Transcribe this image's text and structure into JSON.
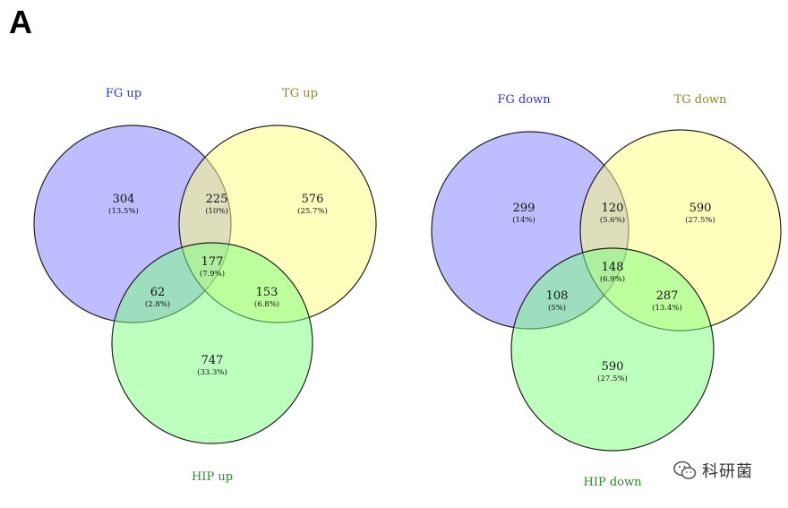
{
  "panel_label": "A",
  "chart_data": [
    {
      "type": "venn",
      "sets": [
        {
          "name": "FG up",
          "color": "#7b7bff"
        },
        {
          "name": "TG up",
          "color": "#ffff7b"
        },
        {
          "name": "HIP up",
          "color": "#7bff7b"
        }
      ],
      "regions": [
        {
          "sets": [
            "FG up"
          ],
          "count": "304",
          "percent": "(13.5%)"
        },
        {
          "sets": [
            "TG up"
          ],
          "count": "576",
          "percent": "(25.7%)"
        },
        {
          "sets": [
            "HIP up"
          ],
          "count": "747",
          "percent": "(33.3%)"
        },
        {
          "sets": [
            "FG up",
            "TG up"
          ],
          "count": "225",
          "percent": "(10%)"
        },
        {
          "sets": [
            "FG up",
            "HIP up"
          ],
          "count": "62",
          "percent": "(2.8%)"
        },
        {
          "sets": [
            "TG up",
            "HIP up"
          ],
          "count": "153",
          "percent": "(6.8%)"
        },
        {
          "sets": [
            "FG up",
            "TG up",
            "HIP up"
          ],
          "count": "177",
          "percent": "(7.9%)"
        }
      ]
    },
    {
      "type": "venn",
      "sets": [
        {
          "name": "FG down",
          "color": "#7b7bff"
        },
        {
          "name": "TG down",
          "color": "#ffff7b"
        },
        {
          "name": "HIP down",
          "color": "#7bff7b"
        }
      ],
      "regions": [
        {
          "sets": [
            "FG down"
          ],
          "count": "299",
          "percent": "(14%)"
        },
        {
          "sets": [
            "TG down"
          ],
          "count": "590",
          "percent": "(27.5%)"
        },
        {
          "sets": [
            "HIP down"
          ],
          "count": "590",
          "percent": "(27.5%)"
        },
        {
          "sets": [
            "FG down",
            "TG down"
          ],
          "count": "120",
          "percent": "(5.6%)"
        },
        {
          "sets": [
            "FG down",
            "HIP down"
          ],
          "count": "108",
          "percent": "(5%)"
        },
        {
          "sets": [
            "TG down",
            "HIP down"
          ],
          "count": "287",
          "percent": "(13.4%)"
        },
        {
          "sets": [
            "FG down",
            "TG down",
            "HIP down"
          ],
          "count": "148",
          "percent": "(6.9%)"
        }
      ]
    }
  ],
  "label_colors": {
    "first": "#3333cc",
    "second": "#8a8a2a",
    "third": "#2a8a2a"
  },
  "watermark": {
    "text": "科研菌",
    "icon": "wechat-icon"
  }
}
